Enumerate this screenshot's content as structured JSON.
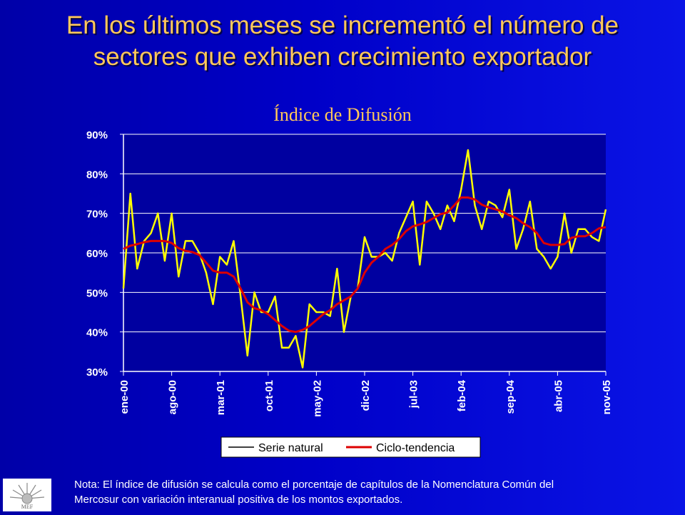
{
  "title_lines": [
    "En los últimos meses se incrementó el número de",
    "sectores que exhiben crecimiento exportador"
  ],
  "note_lines": [
    "Nota: El índice de difusión se calcula como el porcentaje de capítulos de la Nomenclatura Común del",
    "Mercosur con variación interanual positiva de los montos  exportados."
  ],
  "logo_text": "MEF",
  "chart_data": {
    "type": "line",
    "title": "Índice de Difusión",
    "xlabel": "",
    "ylabel": "",
    "ylim": [
      30,
      90
    ],
    "yticks": [
      "30%",
      "40%",
      "50%",
      "60%",
      "70%",
      "80%",
      "90%"
    ],
    "xtick_labels": [
      "ene-00",
      "ago-00",
      "mar-01",
      "oct-01",
      "may-02",
      "dic-02",
      "jul-03",
      "feb-04",
      "sep-04",
      "abr-05",
      "nov-05"
    ],
    "xtick_every": 7,
    "grid": true,
    "legend_position": "bottom",
    "colors": {
      "background": "#0000b8",
      "text": "#ffc85a",
      "plot_area": "#0000a0",
      "grid": "#ffffff",
      "serie_natural": "#ffff00",
      "ciclo_tendencia": "#dd0000"
    },
    "series": [
      {
        "name": "Serie natural",
        "values": [
          51,
          75,
          56,
          63,
          65,
          70,
          58,
          70,
          54,
          63,
          63,
          60,
          55,
          47,
          59,
          57,
          63,
          49,
          34,
          50,
          45,
          45,
          49,
          36,
          36,
          39,
          31,
          47,
          45,
          45,
          44,
          56,
          40,
          49,
          51,
          64,
          59,
          59,
          60,
          58,
          65,
          69,
          73,
          57,
          73,
          70,
          66,
          72,
          68,
          76,
          86,
          72,
          66,
          73,
          72,
          69,
          76,
          61,
          66,
          73,
          61,
          59,
          56,
          59,
          70,
          60,
          66,
          66,
          64,
          63,
          71
        ]
      },
      {
        "name": "Ciclo-tendencia",
        "values": [
          61,
          61.8,
          62.2,
          62.7,
          63,
          63,
          63,
          62.5,
          61.2,
          60.5,
          60.2,
          59.5,
          57.5,
          55.5,
          55,
          55,
          54,
          51,
          47.5,
          46,
          45.5,
          44.5,
          43,
          41.5,
          40.3,
          40,
          40.5,
          41.5,
          43,
          44.5,
          45.5,
          47,
          48,
          49,
          51,
          55,
          57.5,
          59,
          61,
          62,
          63.5,
          65.5,
          66.7,
          67.2,
          67.8,
          68.8,
          69.8,
          70.2,
          72,
          74,
          74,
          73.5,
          72.2,
          71.5,
          71,
          70.5,
          69.5,
          68.8,
          67.5,
          66.5,
          65,
          62.5,
          62,
          62,
          62.2,
          63.8,
          64.2,
          64.2,
          65,
          66.2,
          66.5
        ]
      }
    ]
  }
}
